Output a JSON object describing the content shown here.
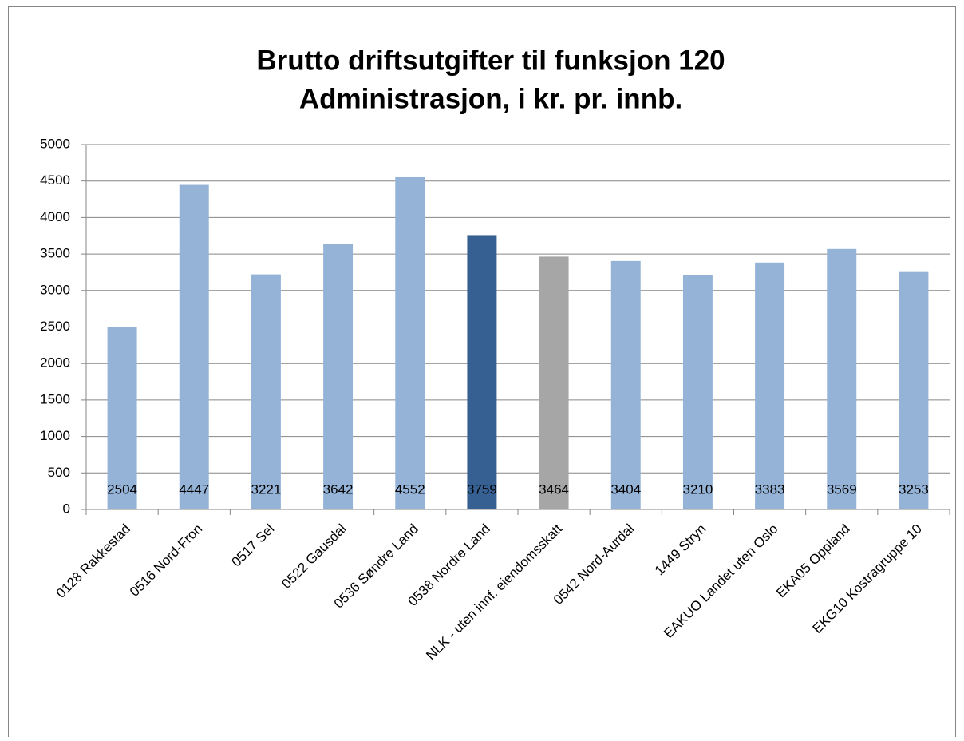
{
  "chart_data": {
    "type": "bar",
    "title": [
      "Brutto driftsutgifter til funksjon 120",
      "Administrasjon, i kr. pr. innb."
    ],
    "categories": [
      "0128 Rakkestad",
      "0516 Nord-Fron",
      "0517 Sel",
      "0522 Gausdal",
      "0536 Søndre Land",
      "0538 Nordre Land",
      "NLK - uten innf. eiendomsskatt",
      "0542 Nord-Aurdal",
      "1449 Stryn",
      "EAKUO Landet uten Oslo",
      "EKA05 Oppland",
      "EKG10 Kostragruppe 10"
    ],
    "values": [
      2504,
      4447,
      3221,
      3642,
      4552,
      3759,
      3464,
      3404,
      3210,
      3383,
      3569,
      3253
    ],
    "colors": [
      "#95b3d7",
      "#95b3d7",
      "#95b3d7",
      "#95b3d7",
      "#95b3d7",
      "#366092",
      "#a6a6a6",
      "#95b3d7",
      "#95b3d7",
      "#95b3d7",
      "#95b3d7",
      "#95b3d7"
    ],
    "ylim": [
      0,
      5000
    ],
    "yticks": [
      0,
      500,
      1000,
      1500,
      2000,
      2500,
      3000,
      3500,
      4000,
      4500,
      5000
    ],
    "grid": true
  }
}
